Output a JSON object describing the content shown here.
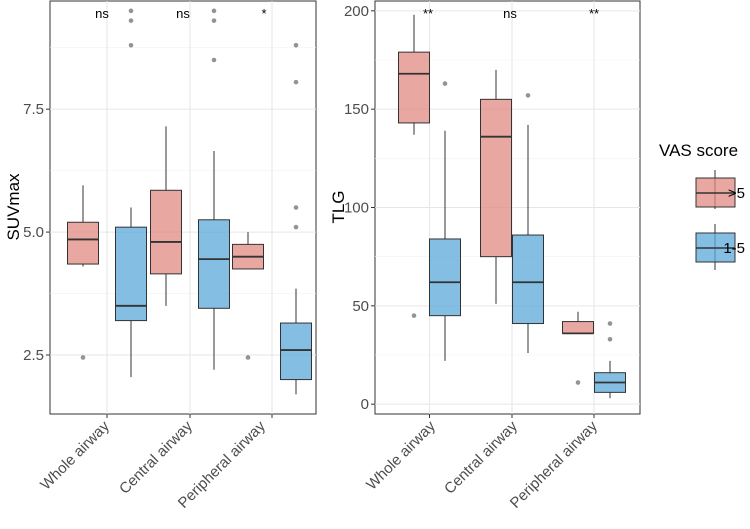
{
  "colors": {
    "high": "#E08A80",
    "low": "#5BA8DA",
    "median": "#333333",
    "outlier": "#808080",
    "grid": "#e6e6e6"
  },
  "legend": {
    "title": "VAS score",
    "items": [
      {
        "label": ">5",
        "key": "high"
      },
      {
        "label": "1-5",
        "key": "low"
      }
    ]
  },
  "chart_data": [
    {
      "type": "boxplot",
      "ylabel": "SUVmax",
      "xlabel": "",
      "ylim": [
        1.3,
        9.7
      ],
      "yticks": [
        2.5,
        5.0,
        7.5
      ],
      "ytick_labels": [
        "2.5",
        "5.0",
        "7.5"
      ],
      "categories": [
        "Whole airway",
        "Central airway",
        "Peripheral airway"
      ],
      "significance": [
        "ns",
        "ns",
        "*"
      ],
      "series": [
        {
          "name": ">5",
          "key": "high",
          "boxes": [
            {
              "whisker_low": 4.3,
              "q1": 4.35,
              "median": 4.85,
              "q3": 5.2,
              "whisker_high": 5.95,
              "outliers": [
                2.45
              ]
            },
            {
              "whisker_low": 3.5,
              "q1": 4.15,
              "median": 4.8,
              "q3": 5.85,
              "whisker_high": 7.15,
              "outliers": []
            },
            {
              "whisker_low": 4.25,
              "q1": 4.25,
              "median": 4.5,
              "q3": 4.75,
              "whisker_high": 5.0,
              "outliers": [
                2.45
              ]
            }
          ]
        },
        {
          "name": "1-5",
          "key": "low",
          "boxes": [
            {
              "whisker_low": 2.05,
              "q1": 3.2,
              "median": 3.5,
              "q3": 5.1,
              "whisker_high": 5.5,
              "outliers": [
                8.8,
                9.3,
                9.5
              ]
            },
            {
              "whisker_low": 2.2,
              "q1": 3.45,
              "median": 4.45,
              "q3": 5.25,
              "whisker_high": 6.65,
              "outliers": [
                8.5,
                9.3,
                9.5
              ]
            },
            {
              "whisker_low": 1.7,
              "q1": 2.0,
              "median": 2.6,
              "q3": 3.15,
              "whisker_high": 3.85,
              "outliers": [
                5.1,
                5.5,
                8.05,
                8.8
              ]
            }
          ]
        }
      ]
    },
    {
      "type": "boxplot",
      "ylabel": "TLG",
      "xlabel": "",
      "ylim": [
        -5,
        205
      ],
      "yticks": [
        0,
        50,
        100,
        150,
        200
      ],
      "ytick_labels": [
        "0",
        "50",
        "100",
        "150",
        "200"
      ],
      "categories": [
        "Whole airway",
        "Central airway",
        "Peripheral airway"
      ],
      "significance": [
        "**",
        "ns",
        "**"
      ],
      "series": [
        {
          "name": ">5",
          "key": "high",
          "boxes": [
            {
              "whisker_low": 137,
              "q1": 143,
              "median": 168,
              "q3": 179,
              "whisker_high": 198,
              "outliers": [
                45
              ]
            },
            {
              "whisker_low": 51,
              "q1": 75,
              "median": 136,
              "q3": 155,
              "whisker_high": 170,
              "outliers": []
            },
            {
              "whisker_low": 36,
              "q1": 36,
              "median": 36,
              "q3": 42,
              "whisker_high": 47,
              "outliers": [
                11
              ]
            }
          ]
        },
        {
          "name": "1-5",
          "key": "low",
          "boxes": [
            {
              "whisker_low": 22,
              "q1": 45,
              "median": 62,
              "q3": 84,
              "whisker_high": 139,
              "outliers": [
                163
              ]
            },
            {
              "whisker_low": 26,
              "q1": 41,
              "median": 62,
              "q3": 86,
              "whisker_high": 142,
              "outliers": [
                157
              ]
            },
            {
              "whisker_low": 3,
              "q1": 6,
              "median": 11,
              "q3": 16,
              "whisker_high": 22,
              "outliers": [
                33,
                41
              ]
            }
          ]
        }
      ]
    }
  ]
}
